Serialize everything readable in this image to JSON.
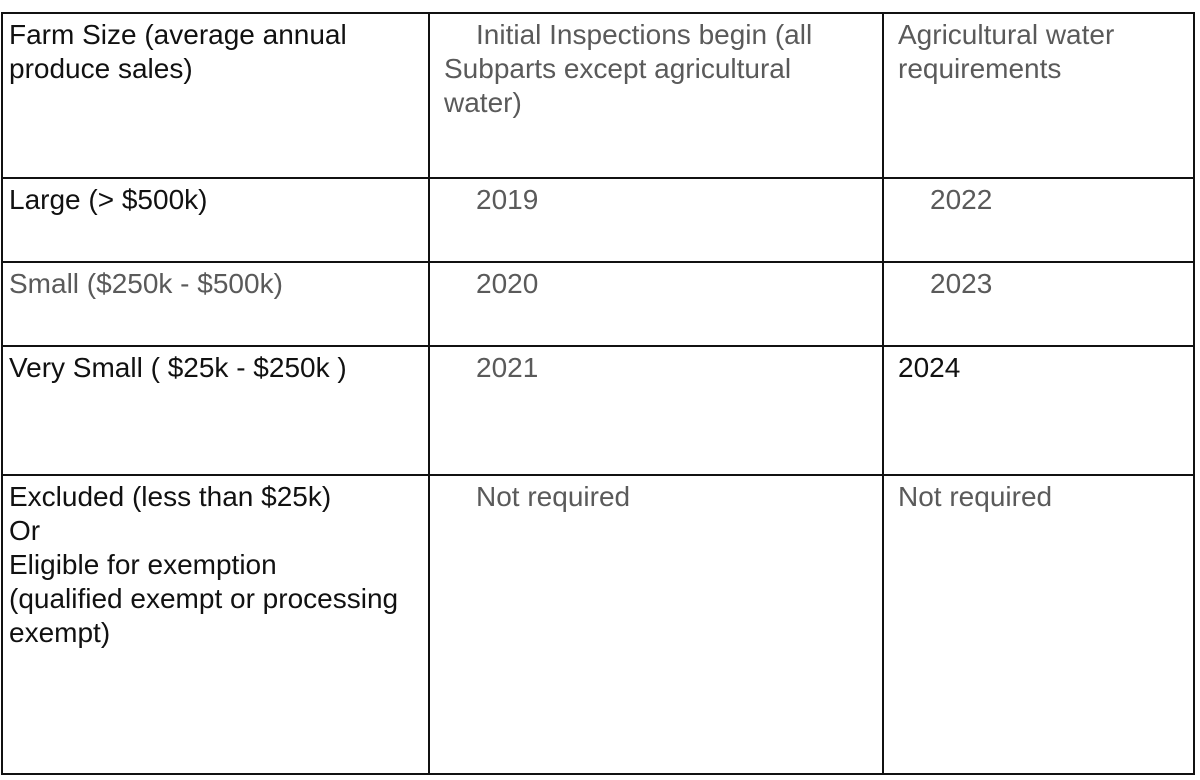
{
  "table": {
    "header": [
      "Farm Size (average annual produce sales)",
      "Initial Inspections begin (all Subparts except agricultural water)",
      "Agricultural water requirements"
    ],
    "rows": [
      [
        "Large (> $500k)",
        "2019",
        "2022"
      ],
      [
        "Small ($250k  -  $500k)",
        "2020",
        "2023"
      ],
      [
        "Very Small ( $25k - $250k )",
        "2021",
        "2024"
      ],
      [
        [
          "Excluded (less than $25k)",
          "Or",
          "Eligible for exemption",
          "(qualified exempt or processing exempt)"
        ],
        "Not required",
        "Not required"
      ]
    ]
  }
}
